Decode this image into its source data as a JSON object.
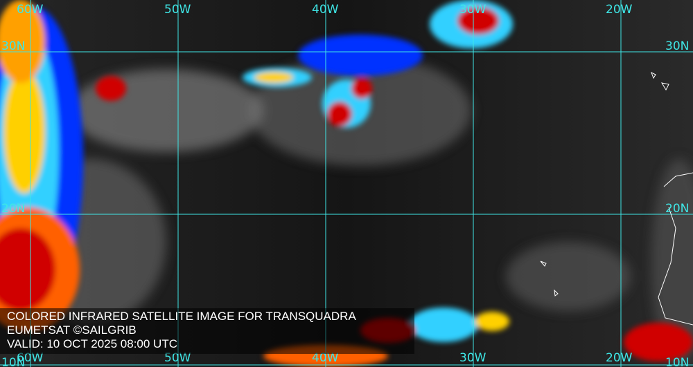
{
  "caption": {
    "title": "COLORED INFRARED SATELLITE IMAGE FOR TRANSQUADRA",
    "source": "EUMETSAT ©SAILGRIB",
    "valid": "VALID:  10 OCT 2025 08:00 UTC"
  },
  "grid": {
    "longitudes": [
      "60W",
      "50W",
      "40W",
      "30W",
      "20W"
    ],
    "latitudes": [
      "30N",
      "20N",
      "10N"
    ],
    "line_color": "#3fe6e6"
  },
  "colors": {
    "cold_tops": "#d00000",
    "mid": "#ffd000",
    "cyan": "#40e0ff",
    "blue": "#0020ff",
    "low_cloud": "#9a9a9a"
  }
}
